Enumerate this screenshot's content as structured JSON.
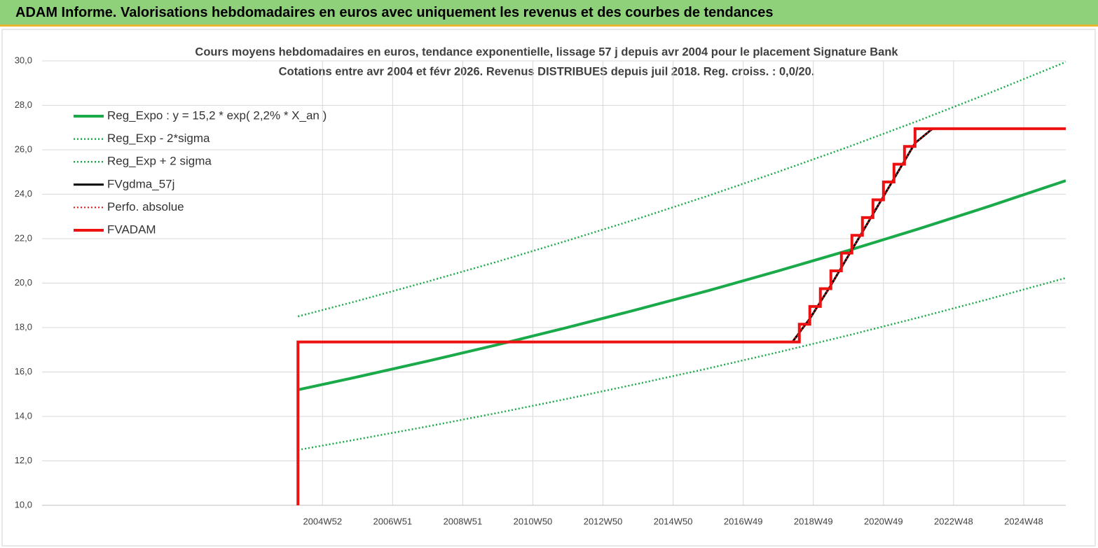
{
  "header": {
    "title": "ADAM Informe. Valorisations hebdomadaires en euros avec uniquement les revenus et des courbes de tendances"
  },
  "chart_data": {
    "type": "line",
    "title": "Cours moyens hebdomadaires en euros, tendance exponentielle, lissage 57 j depuis avr 2004 pour le placement Signature Bank",
    "subtitle": "Cotations entre avr 2004 et févr 2026. Revenus DISTRIBUES depuis juil 2018. Reg. croiss. : 0,0/20.",
    "xlim": [
      1997,
      2026.2
    ],
    "xticks": [
      {
        "value": 2005,
        "label": "2004W52"
      },
      {
        "value": 2007,
        "label": "2006W51"
      },
      {
        "value": 2009,
        "label": "2008W51"
      },
      {
        "value": 2011,
        "label": "2010W50"
      },
      {
        "value": 2013,
        "label": "2012W50"
      },
      {
        "value": 2015,
        "label": "2014W50"
      },
      {
        "value": 2017,
        "label": "2016W49"
      },
      {
        "value": 2019,
        "label": "2018W49"
      },
      {
        "value": 2021,
        "label": "2020W49"
      },
      {
        "value": 2023,
        "label": "2022W48"
      },
      {
        "value": 2025,
        "label": "2024W48"
      }
    ],
    "ylim": [
      10,
      30
    ],
    "yticks": [
      {
        "value": 10,
        "label": "10,0"
      },
      {
        "value": 12,
        "label": "12,0"
      },
      {
        "value": 14,
        "label": "14,0"
      },
      {
        "value": 16,
        "label": "16,0"
      },
      {
        "value": 18,
        "label": "18,0"
      },
      {
        "value": 20,
        "label": "20,0"
      },
      {
        "value": 22,
        "label": "22,0"
      },
      {
        "value": 24,
        "label": "24,0"
      },
      {
        "value": 26,
        "label": "26,0"
      },
      {
        "value": 28,
        "label": "28,0"
      },
      {
        "value": 30,
        "label": "30,0"
      }
    ],
    "grid": true,
    "legend": "top-left",
    "series": [
      {
        "name": "Reg_Expo : y = 15,2 * exp( 2,2% *  X_an )",
        "color": "#1aaa4a",
        "style": "solid",
        "width": 4,
        "x": [
          2004.3,
          2006,
          2008,
          2010,
          2012,
          2014,
          2016,
          2018,
          2020,
          2022,
          2024,
          2026.2
        ],
        "values": [
          15.2,
          15.78,
          16.49,
          17.23,
          18.01,
          18.82,
          19.66,
          20.55,
          21.47,
          22.44,
          23.45,
          24.61
        ]
      },
      {
        "name": "Reg_Exp - 2*sigma",
        "color": "#1aaa4a",
        "style": "dotted",
        "width": 2.5,
        "x": [
          2004.3,
          2006,
          2008,
          2010,
          2012,
          2014,
          2016,
          2018,
          2020,
          2022,
          2024,
          2026.2
        ],
        "values": [
          12.49,
          12.97,
          13.55,
          14.16,
          14.8,
          15.47,
          16.16,
          16.89,
          17.65,
          18.45,
          19.28,
          20.23
        ]
      },
      {
        "name": "Reg_Exp + 2 sigma",
        "color": "#1aaa4a",
        "style": "dotted",
        "width": 2.5,
        "x": [
          2004.3,
          2006,
          2008,
          2010,
          2012,
          2014,
          2016,
          2018,
          2020,
          2022,
          2024,
          2026.2
        ],
        "values": [
          18.5,
          19.2,
          20.07,
          20.97,
          21.92,
          22.9,
          23.93,
          25.01,
          26.13,
          27.31,
          28.54,
          29.95
        ]
      },
      {
        "name": "FVgdma_57j",
        "color": "#000000",
        "style": "solid",
        "width": 3,
        "x": [
          2004.3,
          2004.3,
          2018.4,
          2018.9,
          2019.5,
          2020.1,
          2020.7,
          2021.3,
          2021.9,
          2022.4,
          2026.2
        ],
        "values": [
          10,
          17.35,
          17.35,
          18.4,
          19.9,
          21.5,
          23.1,
          24.7,
          26.3,
          26.95,
          26.95
        ]
      },
      {
        "name": "Perfo. absolue",
        "color": "#e01010",
        "style": "dotted",
        "width": 2,
        "x": [
          2004.3,
          2004.3,
          2018.4,
          2018.9,
          2019.5,
          2020.1,
          2020.7,
          2021.3,
          2021.9,
          2022.4,
          2026.2
        ],
        "values": [
          10,
          17.35,
          17.35,
          18.4,
          19.9,
          21.5,
          23.1,
          24.7,
          26.3,
          26.95,
          26.95
        ]
      },
      {
        "name": "FVADAM",
        "color": "#ee1111",
        "style": "solid",
        "width": 4,
        "x": [
          2004.3,
          2004.3,
          2018.6,
          2018.6,
          2018.9,
          2018.9,
          2019.2,
          2019.2,
          2019.5,
          2019.5,
          2019.8,
          2019.8,
          2020.1,
          2020.1,
          2020.4,
          2020.4,
          2020.7,
          2020.7,
          2021.0,
          2021.0,
          2021.3,
          2021.3,
          2021.6,
          2021.6,
          2021.9,
          2021.9,
          2026.2
        ],
        "values": [
          10,
          17.35,
          17.35,
          18.15,
          18.15,
          18.95,
          18.95,
          19.75,
          19.75,
          20.55,
          20.55,
          21.35,
          21.35,
          22.15,
          22.15,
          22.95,
          22.95,
          23.75,
          23.75,
          24.55,
          24.55,
          25.35,
          25.35,
          26.15,
          26.15,
          26.95,
          26.95
        ]
      }
    ]
  }
}
